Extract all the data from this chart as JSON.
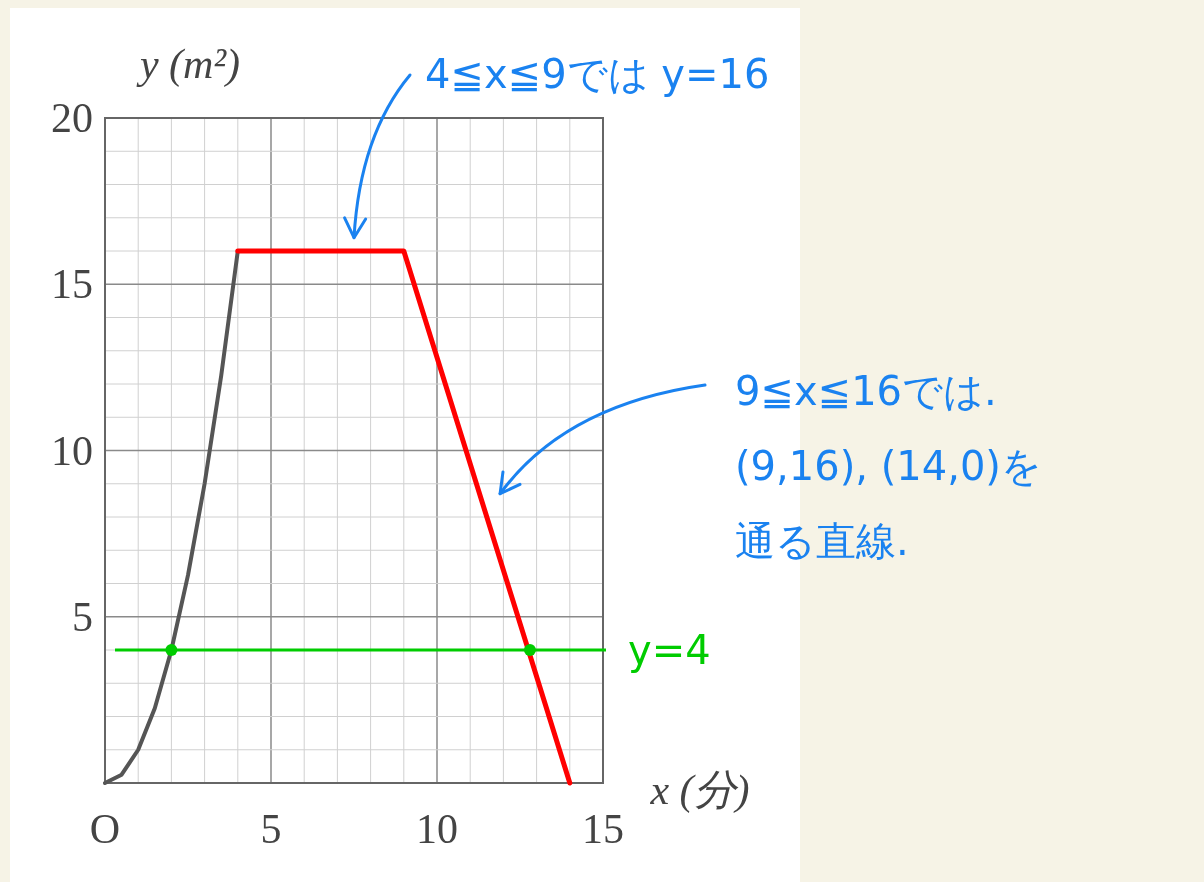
{
  "chart_data": {
    "type": "line",
    "xlabel": "x (分)",
    "ylabel": "y (m²)",
    "xlim": [
      0,
      15
    ],
    "ylim": [
      0,
      20
    ],
    "xticks": [
      {
        "value": 0,
        "label": "O"
      },
      {
        "value": 1,
        "label": null
      },
      {
        "value": 2,
        "label": null
      },
      {
        "value": 3,
        "label": null
      },
      {
        "value": 4,
        "label": null
      },
      5,
      {
        "value": 6,
        "label": null
      },
      {
        "value": 7,
        "label": null
      },
      {
        "value": 8,
        "label": null
      },
      {
        "value": 9,
        "label": null
      },
      10,
      {
        "value": 11,
        "label": null
      },
      {
        "value": 12,
        "label": null
      },
      {
        "value": 13,
        "label": null
      },
      {
        "value": 14,
        "label": null
      },
      15
    ],
    "yticks": [
      {
        "value": 0,
        "label": null
      },
      {
        "value": 1,
        "label": null
      },
      {
        "value": 2,
        "label": null
      },
      {
        "value": 3,
        "label": null
      },
      {
        "value": 4,
        "label": null
      },
      5,
      {
        "value": 6,
        "label": null
      },
      {
        "value": 7,
        "label": null
      },
      {
        "value": 8,
        "label": null
      },
      {
        "value": 9,
        "label": null
      },
      10,
      {
        "value": 11,
        "label": null
      },
      {
        "value": 12,
        "label": null
      },
      {
        "value": 13,
        "label": null
      },
      {
        "value": 14,
        "label": null
      },
      15,
      {
        "value": 16,
        "label": null
      },
      {
        "value": 17,
        "label": null
      },
      {
        "value": 18,
        "label": null
      },
      {
        "value": 19,
        "label": null
      },
      20
    ],
    "grid": true,
    "line_style": "solid",
    "series": [
      {
        "color": "#555555",
        "x": [
          0,
          0.5,
          1,
          1.5,
          2,
          2.5,
          3,
          3.5,
          4
        ],
        "values": [
          0,
          0.25,
          1,
          2.25,
          4,
          6.25,
          9,
          12.25,
          16
        ]
      },
      {
        "color": "#ff0000",
        "x": [
          4,
          9,
          14
        ],
        "values": [
          16,
          16,
          0
        ]
      },
      {
        "type": "scatter",
        "marker": "circle",
        "color": "#00cc00",
        "x": [
          2,
          12.8
        ],
        "values": [
          4,
          4
        ]
      }
    ],
    "ref_lines": [
      {
        "axis": "y",
        "value": 4,
        "label": "y=4",
        "color": "#00cc00"
      }
    ],
    "annotations": [
      "4≦x≦9では y=16",
      "9≦x≦16では.(9,16), (14,0)を通る直線."
    ]
  }
}
